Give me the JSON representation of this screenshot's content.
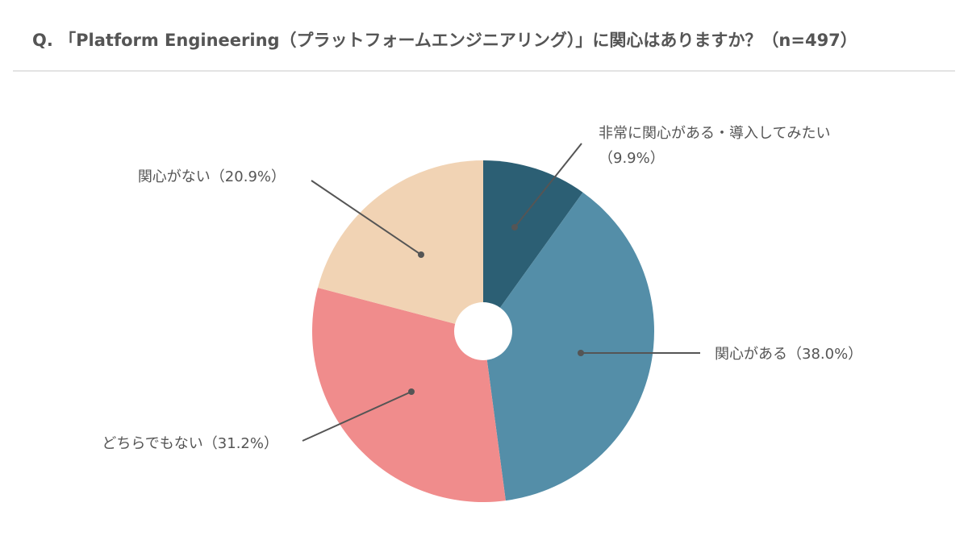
{
  "title": "Q. 「Platform Engineering（プラットフォームエンジニアリング）」に関心はありますか？（n=497）",
  "chart_data": {
    "type": "pie",
    "donut": true,
    "start_angle_deg": 0,
    "direction": "clockwise",
    "slices": [
      {
        "label_lines": [
          "非常に関心がある・導入してみたい",
          "（9.9%）"
        ],
        "value": 9.9,
        "color": "#2c5f74"
      },
      {
        "label_lines": [
          "関心がある（38.0%）"
        ],
        "value": 38.0,
        "color": "#548ea8"
      },
      {
        "label_lines": [
          "どちらでもない（31.2%）"
        ],
        "value": 31.2,
        "color": "#f08c8c"
      },
      {
        "label_lines": [
          "関心がない（20.9%）"
        ],
        "value": 20.9,
        "color": "#f1d3b4"
      }
    ],
    "leader_color": "#555555"
  }
}
